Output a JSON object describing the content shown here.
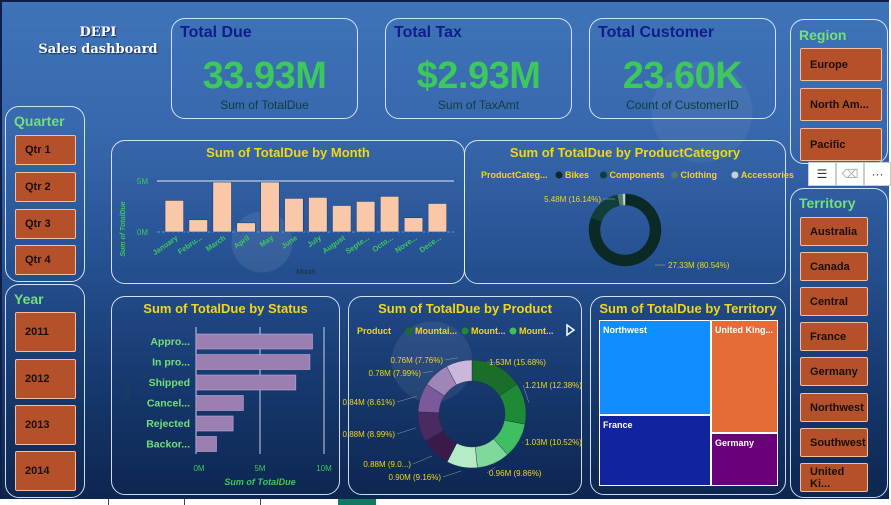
{
  "brand": {
    "line1": "DEPI",
    "line2": "Sales dashboard"
  },
  "kpis": [
    {
      "title": "Total Due",
      "value": "33.93M",
      "label": "Sum of TotalDue"
    },
    {
      "title": "Total Tax",
      "value": "$2.93M",
      "label": "Sum of TaxAmt"
    },
    {
      "title": "Total Customer",
      "value": "23.60K",
      "label": "Count of CustomerID"
    }
  ],
  "slicers": {
    "quarter": {
      "title": "Quarter",
      "items": [
        "Qtr 1",
        "Qtr 2",
        "Qtr 3",
        "Qtr 4"
      ]
    },
    "year": {
      "title": "Year",
      "items": [
        "2011",
        "2012",
        "2013",
        "2014"
      ]
    },
    "region": {
      "title": "Region",
      "items": [
        "Europe",
        "North Am...",
        "Pacific"
      ]
    },
    "territory": {
      "title": "Territory",
      "items": [
        "Australia",
        "Canada",
        "Central",
        "France",
        "Germany",
        "Northwest",
        "Southwest",
        "United Ki..."
      ]
    }
  },
  "toolbar": {
    "filter_icon": "☰",
    "eraser_icon": "⌫",
    "more_icon": "···"
  },
  "colors": {
    "accent_title": "#f3d51c",
    "kpi_value": "#3cc85c",
    "slicer_button": "#b4512b",
    "slicer_title": "#74e07a"
  },
  "chart_data": [
    {
      "type": "bar",
      "title": "Sum of TotalDue by Month",
      "xlabel": "Month",
      "ylabel": "Sum of TotalDue",
      "categories": [
        "January",
        "Febru...",
        "March",
        "April",
        "May",
        "June",
        "July",
        "August",
        "Septe...",
        "Octo...",
        "Nove...",
        "Dece..."
      ],
      "values": [
        3.1,
        1.2,
        4.9,
        0.9,
        4.9,
        3.3,
        3.4,
        2.6,
        3.0,
        3.5,
        1.4,
        2.8
      ],
      "yticks": [
        "0M",
        "5M"
      ],
      "ylim": [
        0,
        5
      ],
      "unit": "M",
      "grid": true,
      "color": "#f8c8a8"
    },
    {
      "type": "pie",
      "donut": true,
      "title": "Sum of TotalDue by ProductCategory",
      "legend_title": "ProductCateg...",
      "legend_position": "top",
      "categories": [
        "Bikes",
        "Components",
        "Clothing",
        "Accessories"
      ],
      "values": [
        27.33,
        5.48,
        0.8,
        0.3
      ],
      "percents": [
        80.54,
        16.14,
        2.36,
        0.96
      ],
      "data_labels": [
        "27.33M (80.54%)",
        "5.48M (16.14%)",
        "",
        ""
      ],
      "colors": [
        "#0b2a26",
        "#123d38",
        "#4f7b6e",
        "#c8d0d0"
      ]
    },
    {
      "type": "bar",
      "orientation": "horizontal",
      "title": "Sum of TotalDue by Status",
      "xlabel": "Sum of TotalDue",
      "ylabel": "Status",
      "categories": [
        "Appro...",
        "In pro...",
        "Shipped",
        "Cancel...",
        "Rejected",
        "Backor..."
      ],
      "values": [
        9.1,
        8.9,
        7.8,
        3.7,
        2.9,
        1.6
      ],
      "xticks": [
        "0M",
        "5M",
        "10M"
      ],
      "xlim": [
        0,
        10
      ],
      "unit": "M",
      "grid": true,
      "color": "#9b7fb0"
    },
    {
      "type": "pie",
      "donut": true,
      "title": "Sum of TotalDue by Product",
      "legend_title": "Product",
      "legend_position": "top",
      "legend_items": [
        "Mountai...",
        "Mount...",
        "Mount..."
      ],
      "values": [
        1.53,
        1.21,
        1.03,
        0.96,
        0.9,
        0.88,
        0.88,
        0.84,
        0.78,
        0.76
      ],
      "percents": [
        15.68,
        12.38,
        10.52,
        9.86,
        9.16,
        9.0,
        8.99,
        8.61,
        7.99,
        7.76
      ],
      "data_labels": [
        "1.53M (15.68%)",
        "1.21M (12.38%)",
        "1.03M (10.52%)",
        "0.96M (9.86%)",
        "0.90M (9.16%)",
        "0.88M (9.0...)",
        "0.88M (8.99%)",
        "0.84M (8.61%)",
        "0.78M (7.99%)",
        "0.76M (7.76%)"
      ],
      "colors": [
        "#1a6e2a",
        "#1e8a35",
        "#3fbf62",
        "#7fd99a",
        "#b5ebc5",
        "#3a1a48",
        "#4a2a60",
        "#7a5a9a",
        "#a086b8",
        "#cbb6dc"
      ]
    },
    {
      "type": "treemap",
      "title": "Sum of TotalDue by Territory",
      "categories": [
        "Northwest",
        "France",
        "United King...",
        "Germany"
      ],
      "colors": [
        "#118dff",
        "#12239e",
        "#e66c37",
        "#6b007b"
      ]
    }
  ]
}
